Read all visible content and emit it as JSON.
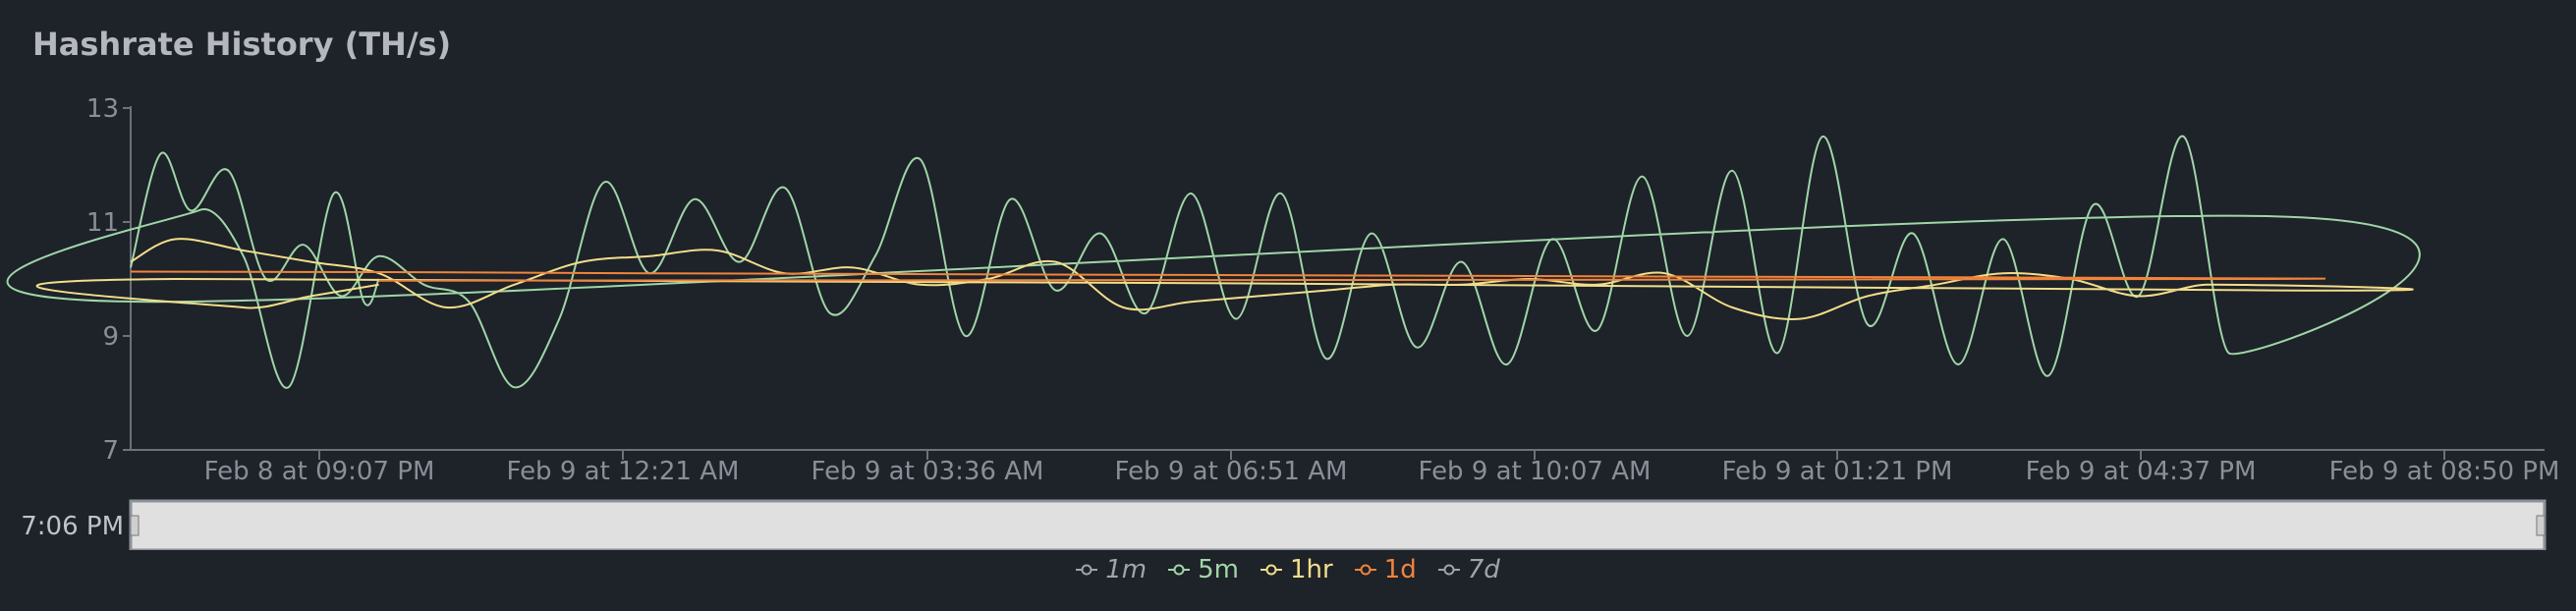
{
  "header": {
    "title": "Hashrate History (TH/s)"
  },
  "navigator": {
    "left_label": "7:06 PM"
  },
  "colors": {
    "background": "#1e2229",
    "1m": "#a0a3a8",
    "5m": "#9fd6a7",
    "1hr": "#f2de8a",
    "1d": "#f1843b",
    "7d": "#a0a3a8"
  },
  "chart_data": {
    "type": "line",
    "title": "Hashrate History (TH/s)",
    "xlabel": "",
    "ylabel": "",
    "ylim": [
      7,
      13
    ],
    "yticks": [
      "7",
      "9",
      "11",
      "13"
    ],
    "xlim": [
      "2025-02-08T18:15",
      "2025-02-09T21:00"
    ],
    "xticks": [
      "Feb 8 at 09:07 PM",
      "Feb 9 at 12:21 AM",
      "Feb 9 at 03:36 AM",
      "Feb 9 at 06:51 AM",
      "Feb 9 at 10:07 AM",
      "Feb 9 at 01:21 PM",
      "Feb 9 at 04:37 PM",
      "Feb 9 at 08:50 PM"
    ],
    "grid": false,
    "legend_position": "bottom-center",
    "legend": [
      {
        "name": "1m",
        "enabled": false
      },
      {
        "name": "5m",
        "enabled": true
      },
      {
        "name": "1hr",
        "enabled": true
      },
      {
        "name": "1d",
        "enabled": true
      },
      {
        "name": "7d",
        "enabled": false
      }
    ],
    "series": [
      {
        "name": "5m",
        "x": [
          "18:15",
          "18:35",
          "18:55",
          "19:20",
          "19:45",
          "20:10",
          "20:35",
          "21:00",
          "21:30",
          "22:00",
          "22:30",
          "23:00",
          "23:30",
          "00:00",
          "00:30",
          "01:00",
          "01:30",
          "02:00",
          "02:30",
          "03:00",
          "03:30",
          "04:00",
          "04:30",
          "05:00",
          "05:30",
          "06:00",
          "06:30",
          "07:00",
          "07:30",
          "08:00",
          "08:30",
          "09:00",
          "09:30",
          "10:00",
          "10:30",
          "11:00",
          "11:30",
          "12:00",
          "12:30",
          "13:00",
          "13:30",
          "14:00",
          "14:30",
          "15:00",
          "15:30",
          "16:00",
          "16:30",
          "17:00",
          "17:30",
          "18:00",
          "18:30",
          "19:00",
          "19:30",
          "20:00",
          "20:30",
          "20:50",
          "21:00"
        ],
        "y": [
          10.2,
          12.2,
          11.2,
          11.9,
          10.0,
          10.6,
          9.7,
          10.4,
          9.9,
          9.6,
          8.1,
          9.3,
          11.7,
          10.1,
          11.4,
          10.3,
          11.6,
          9.4,
          10.4,
          12.1,
          9.0,
          11.4,
          9.8,
          10.8,
          9.4,
          11.5,
          9.3,
          11.5,
          8.6,
          10.8,
          8.8,
          10.3,
          8.5,
          10.7,
          9.1,
          11.8,
          9.0,
          11.9,
          8.7,
          12.5,
          9.2,
          10.8,
          8.5,
          10.7,
          8.3,
          11.3,
          9.7,
          12.5,
          8.7,
          11.1,
          9.6,
          11.2,
          10.4,
          8.1,
          11.5,
          9.6,
          10.0
        ]
      },
      {
        "name": "1hr",
        "x": [
          "18:15",
          "18:45",
          "19:30",
          "20:15",
          "21:00",
          "21:45",
          "22:30",
          "23:15",
          "00:00",
          "00:45",
          "01:30",
          "02:15",
          "03:00",
          "03:45",
          "04:30",
          "05:15",
          "06:00",
          "06:45",
          "07:30",
          "08:15",
          "09:00",
          "09:45",
          "10:30",
          "11:15",
          "12:00",
          "12:45",
          "13:30",
          "14:15",
          "15:00",
          "15:45",
          "16:30",
          "17:15",
          "18:00",
          "18:45",
          "19:30",
          "20:15",
          "21:00"
        ],
        "y": [
          10.3,
          10.7,
          10.5,
          10.3,
          10.1,
          9.5,
          9.9,
          10.3,
          10.4,
          10.5,
          10.1,
          10.2,
          9.9,
          10.0,
          10.3,
          9.5,
          9.6,
          9.7,
          9.8,
          9.9,
          9.9,
          10.0,
          9.9,
          10.1,
          9.5,
          9.3,
          9.7,
          9.9,
          10.1,
          10.0,
          9.7,
          9.9,
          9.8,
          10.0,
          9.5,
          9.7,
          9.9
        ]
      },
      {
        "name": "1d",
        "x": [
          "18:15",
          "21:00",
          "00:00",
          "06:00",
          "12:00",
          "18:00",
          "21:00"
        ],
        "y": [
          10.13,
          10.12,
          10.1,
          10.07,
          10.04,
          10.0,
          9.97
        ]
      }
    ]
  }
}
